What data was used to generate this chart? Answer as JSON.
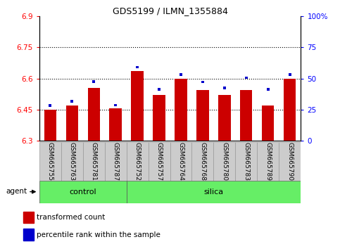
{
  "title": "GDS5199 / ILMN_1355884",
  "samples": [
    "GSM665755",
    "GSM665763",
    "GSM665781",
    "GSM665787",
    "GSM665752",
    "GSM665757",
    "GSM665764",
    "GSM665768",
    "GSM665780",
    "GSM665783",
    "GSM665789",
    "GSM665790"
  ],
  "red_values": [
    6.45,
    6.47,
    6.555,
    6.455,
    6.635,
    6.52,
    6.6,
    6.545,
    6.52,
    6.545,
    6.47,
    6.6
  ],
  "blue_values": [
    6.463,
    6.483,
    6.578,
    6.465,
    6.648,
    6.542,
    6.612,
    6.577,
    6.548,
    6.597,
    6.542,
    6.612
  ],
  "ylim_left": [
    6.3,
    6.9
  ],
  "ylim_right": [
    0,
    100
  ],
  "yticks_left": [
    6.3,
    6.45,
    6.6,
    6.75,
    6.9
  ],
  "yticks_right": [
    0,
    25,
    50,
    75,
    100
  ],
  "ytick_labels_right": [
    "0",
    "25",
    "50",
    "75",
    "100%"
  ],
  "control_samples": 4,
  "control_label": "control",
  "silica_label": "silica",
  "agent_label": "agent",
  "bar_bottom": 6.3,
  "bar_width": 0.55,
  "red_color": "#cc0000",
  "blue_color": "#0000cc",
  "green_bg": "#66ee66",
  "label_bg": "#cccccc",
  "legend_red": "transformed count",
  "legend_blue": "percentile rank within the sample"
}
